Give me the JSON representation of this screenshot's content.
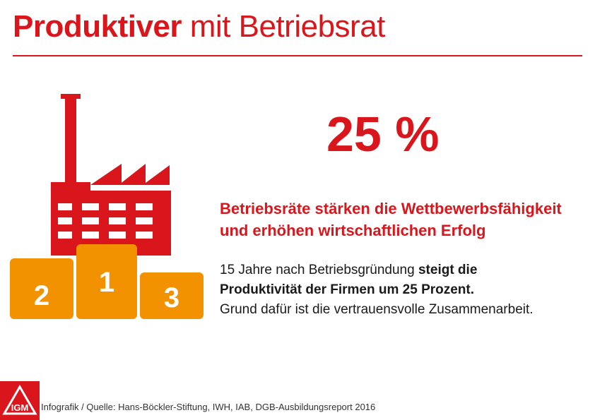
{
  "header": {
    "title_bold": "Produktiver",
    "title_rest": "mit Betriebsrat"
  },
  "stat": {
    "value": "25 %"
  },
  "subheading": {
    "line1": "Betriebsräte stärken die Wettbewerbsfähigkeit",
    "line2": "und erhöhen wirtschaftlichen Erfolg"
  },
  "body": {
    "part1": "15 Jahre nach Betriebsgründung ",
    "bold1": "steigt die",
    "bold2": "Produktivität der Firmen um 25 Prozent.",
    "part2": "Grund dafür ist die vertrauensvolle Zusammenarbeit."
  },
  "podium": {
    "left": "2",
    "center": "1",
    "right": "3"
  },
  "footer": {
    "source": "Infografik / Quelle: Hans-Böckler-Stiftung, IWH, IAB, DGB-Ausbildungsreport 2016",
    "logo_letters": "IGM"
  },
  "colors": {
    "brand_red": "#d9161c",
    "podium_orange": "#f39200",
    "text": "#1a1a1a"
  },
  "icons": [
    "factory-icon",
    "podium-icon",
    "igm-logo-icon"
  ]
}
